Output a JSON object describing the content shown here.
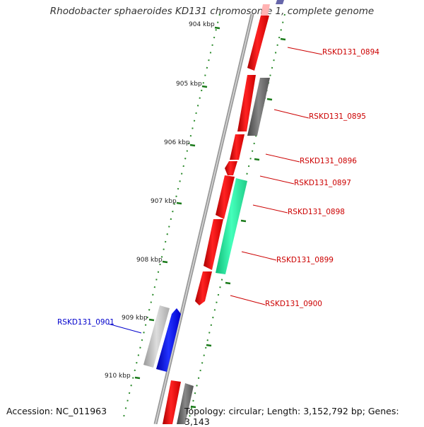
{
  "title": "Rhodobacter sphaeroides KD131 chromosome 1, complete genome",
  "accession": "Accession: NC_011963",
  "topology": "Topology: circular; Length: 3,152,792 bp; Genes: 3,143",
  "ticks": [
    "904 kbp",
    "905 kbp",
    "906 kbp",
    "907 kbp",
    "908 kbp",
    "909 kbp",
    "910 kbp"
  ],
  "genes": [
    {
      "label": "RSKD131_0894",
      "color": "#cc0000"
    },
    {
      "label": "RSKD131_0895",
      "color": "#cc0000"
    },
    {
      "label": "RSKD131_0896",
      "color": "#cc0000"
    },
    {
      "label": "RSKD131_0897",
      "color": "#cc0000"
    },
    {
      "label": "RSKD131_0898",
      "color": "#cc0000"
    },
    {
      "label": "RSKD131_0899",
      "color": "#cc0000"
    },
    {
      "label": "RSKD131_0900",
      "color": "#cc0000"
    },
    {
      "label": "RSKD131_0901",
      "color": "#0000cc"
    }
  ],
  "colors": {
    "backbone": "#888888",
    "tick": "#2a8a2a",
    "red_feature": "#ff0000",
    "blue_feature": "#0000ee",
    "gray_feature": "#777777",
    "green_feature": "#22ee99",
    "light_gray_feature": "#bbbbbb"
  }
}
